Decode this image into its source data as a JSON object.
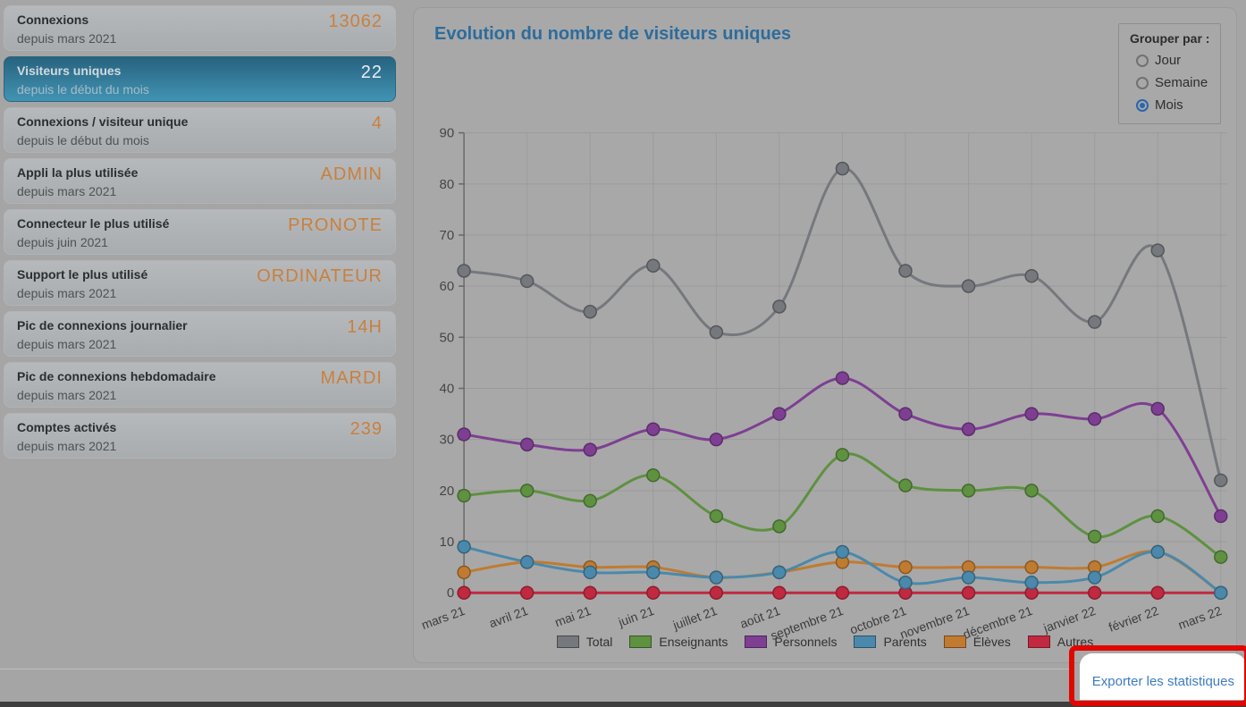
{
  "sidebar": {
    "cards": [
      {
        "title": "Connexions",
        "subtitle": "depuis mars 2021",
        "value": "13062",
        "selected": false
      },
      {
        "title": "Visiteurs uniques",
        "subtitle": "depuis le début du mois",
        "value": "22",
        "selected": true
      },
      {
        "title": "Connexions / visiteur unique",
        "subtitle": "depuis le début du mois",
        "value": "4",
        "selected": false
      },
      {
        "title": "Appli la plus utilisée",
        "subtitle": "depuis mars 2021",
        "value": "ADMIN",
        "selected": false
      },
      {
        "title": "Connecteur le plus utilisé",
        "subtitle": "depuis juin 2021",
        "value": "PRONOTE",
        "selected": false
      },
      {
        "title": "Support le plus utilisé",
        "subtitle": "depuis mars 2021",
        "value": "ORDINATEUR",
        "selected": false
      },
      {
        "title": "Pic de connexions journalier",
        "subtitle": "depuis mars 2021",
        "value": "14H",
        "selected": false
      },
      {
        "title": "Pic de connexions hebdomadaire",
        "subtitle": "depuis mars 2021",
        "value": "MARDI",
        "selected": false
      },
      {
        "title": "Comptes activés",
        "subtitle": "depuis mars 2021",
        "value": "239",
        "selected": false
      }
    ]
  },
  "chart_panel": {
    "title": "Evolution du nombre de visiteurs uniques",
    "group_by": {
      "label": "Grouper par :",
      "options": [
        {
          "label": "Jour",
          "selected": false
        },
        {
          "label": "Semaine",
          "selected": false
        },
        {
          "label": "Mois",
          "selected": true
        }
      ]
    },
    "export_label": "Exporter les statistiques"
  },
  "chart_data": {
    "type": "line",
    "title": "Evolution du nombre de visiteurs uniques",
    "categories": [
      "mars 21",
      "avril 21",
      "mai 21",
      "juin 21",
      "juillet 21",
      "août 21",
      "septembre 21",
      "octobre 21",
      "novembre 21",
      "décembre 21",
      "janvier 22",
      "février 22",
      "mars 22"
    ],
    "series": [
      {
        "name": "Total",
        "color": "#75787d",
        "values": [
          63,
          61,
          55,
          64,
          51,
          56,
          83,
          63,
          60,
          62,
          53,
          67,
          22
        ]
      },
      {
        "name": "Enseignants",
        "color": "#5e9140",
        "values": [
          19,
          20,
          18,
          23,
          15,
          13,
          27,
          21,
          20,
          20,
          11,
          15,
          7
        ]
      },
      {
        "name": "Personnels",
        "color": "#7e3f92",
        "values": [
          31,
          29,
          28,
          32,
          30,
          35,
          42,
          35,
          32,
          35,
          34,
          36,
          15
        ]
      },
      {
        "name": "Parents",
        "color": "#4a89ab",
        "values": [
          9,
          6,
          4,
          4,
          3,
          4,
          8,
          2,
          3,
          2,
          3,
          8,
          0
        ]
      },
      {
        "name": "Élèves",
        "color": "#c07b31",
        "values": [
          4,
          6,
          5,
          5,
          3,
          4,
          6,
          5,
          5,
          5,
          5,
          8,
          0
        ]
      },
      {
        "name": "Autres",
        "color": "#c02940",
        "values": [
          0,
          0,
          0,
          0,
          0,
          0,
          0,
          0,
          0,
          0,
          0,
          0,
          0
        ]
      }
    ],
    "ylim": [
      0,
      90
    ],
    "ytick_step": 10,
    "grid": true,
    "legend_position": "bottom"
  },
  "colors": {
    "selected_card_top": "#27637f",
    "selected_card_bottom": "#4193b3",
    "stat_value_orange": "#c9803d",
    "chart_title_blue": "#2d6c9c",
    "export_link_blue": "#3d7cc0",
    "annotation_red": "#e10600",
    "radio_checked_blue": "#2a65ad"
  }
}
